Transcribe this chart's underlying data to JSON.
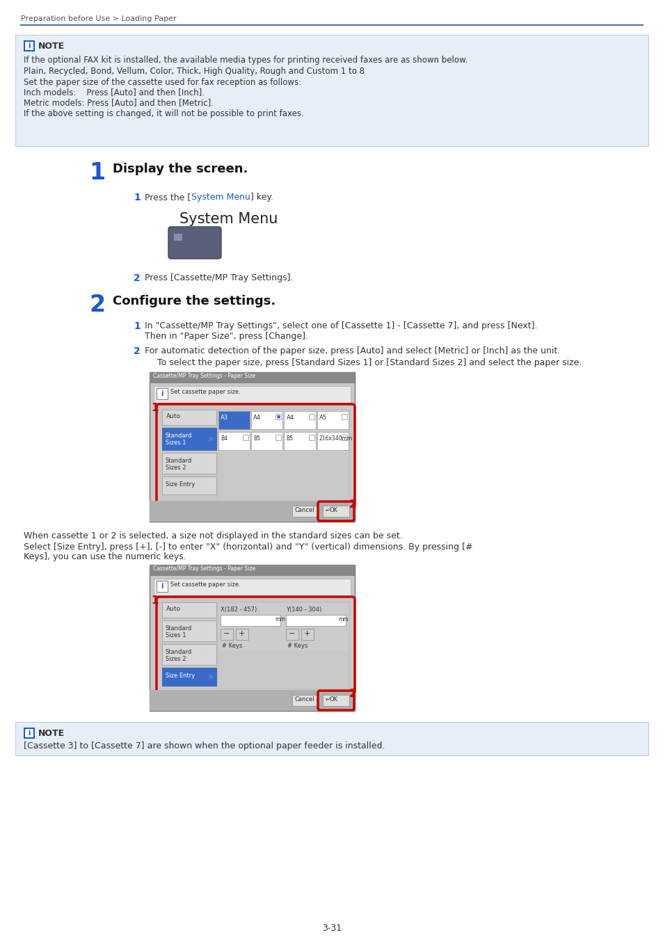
{
  "page_bg": "#ffffff",
  "header_text": "Preparation before Use > Loading Paper",
  "divider_color": "#4472c4",
  "note_bg": "#e8eef8",
  "note_title": "NOTE",
  "note_lines": [
    "If the optional FAX kit is installed, the available media types for printing received faxes are as shown below.",
    "Plain, Recycled, Bond, Vellum, Color, Thick, High Quality, Rough and Custom 1 to 8",
    "Set the paper size of the cassette used for fax reception as follows:",
    "Inch models:    Press [Auto] and then [Inch].",
    "Metric models: Press [Auto] and then [Metric].",
    "If the above setting is changed, it will not be possible to print faxes."
  ],
  "step1_title": "Display the screen.",
  "step1_color": "#1a56db",
  "system_menu_label": "System Menu",
  "sub1_2_text": "Press [Cassette/MP Tray Settings].",
  "step2_title": "Configure the settings.",
  "step2_color": "#1a56db",
  "sub2_1_line1": "In \"Cassette/MP Tray Settings\", select one of [Cassette 1] - [Cassette 7], and press [Next].",
  "sub2_1_line2": "Then in \"Paper Size\", press [Change].",
  "sub2_2_text": "For automatic detection of the paper size, press [Auto] and select [Metric] or [Inch] as the unit.",
  "sub2_2_note": "To select the paper size, press [Standard Sizes 1] or [Standard Sizes 2] and select the paper size.",
  "screen_title": "Cassette/MP Tray Settings - Paper Size",
  "screen_info": "Set cassette paper size.",
  "when_cassette_text": "When cassette 1 or 2 is selected, a size not displayed in the standard sizes can be set.",
  "size_entry_line1": "Select [Size Entry], press [+], [-] to enter \"X\" (horizontal) and \"Y\" (vertical) dimensions. By pressing [#",
  "size_entry_line2": "Keys], you can use the numeric keys.",
  "bottom_note_bg": "#e8eef8",
  "bottom_note_text": "[Cassette 3] to [Cassette 7] are shown when the optional paper feeder is installed.",
  "page_num": "3-31",
  "blue_color": "#1a56db",
  "red_color": "#cc0000",
  "gray_title_bar": "#888888",
  "screen_bg": "#cccccc",
  "btn_highlight": "#3a6bc8",
  "white": "#ffffff"
}
